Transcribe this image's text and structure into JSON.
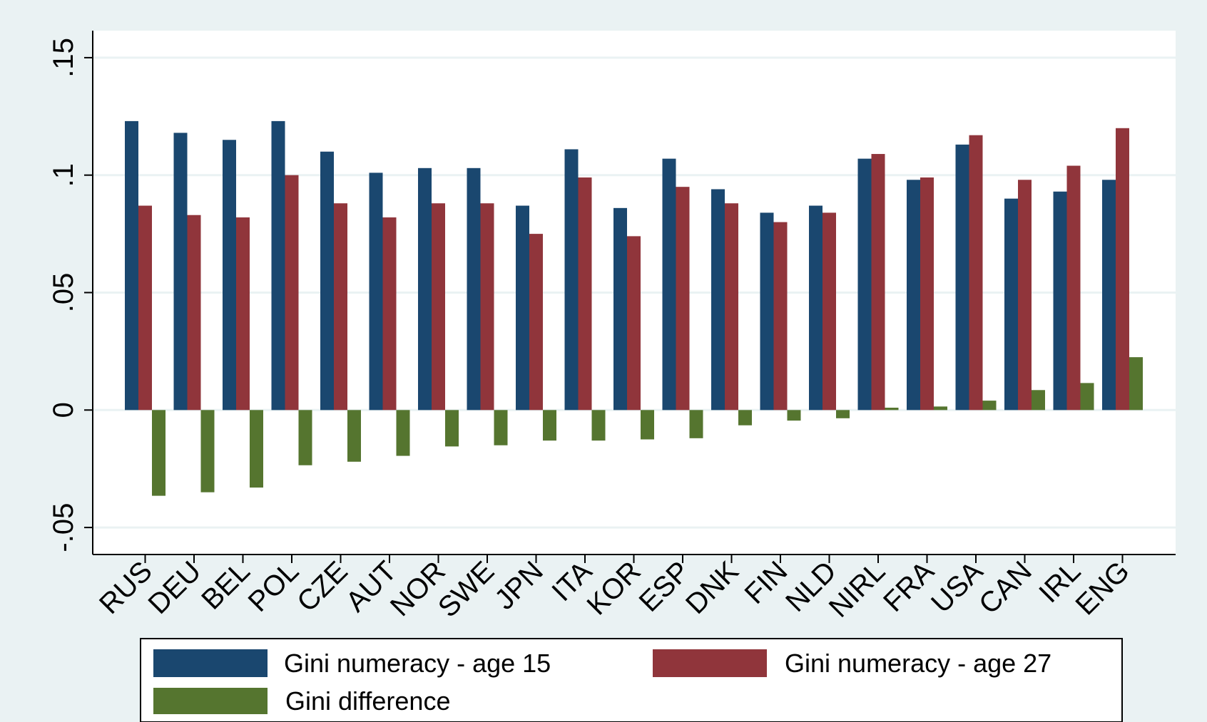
{
  "chart_data": {
    "type": "bar",
    "categories": [
      "RUS",
      "DEU",
      "BEL",
      "POL",
      "CZE",
      "AUT",
      "NOR",
      "SWE",
      "JPN",
      "ITA",
      "KOR",
      "ESP",
      "DNK",
      "FIN",
      "NLD",
      "NIRL",
      "FRA",
      "USA",
      "CAN",
      "IRL",
      "ENG"
    ],
    "series": [
      {
        "name": "Gini numeracy - age 15",
        "color": "#1a476f",
        "values": [
          0.123,
          0.118,
          0.115,
          0.123,
          0.11,
          0.101,
          0.103,
          0.103,
          0.087,
          0.111,
          0.086,
          0.107,
          0.094,
          0.084,
          0.087,
          0.107,
          0.098,
          0.113,
          0.09,
          0.093,
          0.098
        ]
      },
      {
        "name": "Gini numeracy - age 27",
        "color": "#90353b",
        "values": [
          0.087,
          0.083,
          0.082,
          0.1,
          0.088,
          0.082,
          0.088,
          0.088,
          0.075,
          0.099,
          0.074,
          0.095,
          0.088,
          0.08,
          0.084,
          0.109,
          0.099,
          0.117,
          0.098,
          0.104,
          0.12
        ]
      },
      {
        "name": "Gini difference",
        "color": "#55752f",
        "values": [
          -0.0365,
          -0.035,
          -0.033,
          -0.0235,
          -0.022,
          -0.0195,
          -0.0155,
          -0.015,
          -0.013,
          -0.013,
          -0.0125,
          -0.012,
          -0.0065,
          -0.0045,
          -0.0035,
          0.001,
          0.0015,
          0.004,
          0.0085,
          0.0115,
          0.0225
        ]
      }
    ],
    "y_ticks": [
      {
        "value": -0.05,
        "label": "-.05"
      },
      {
        "value": 0,
        "label": "0"
      },
      {
        "value": 0.05,
        "label": ".05"
      },
      {
        "value": 0.1,
        "label": ".1"
      },
      {
        "value": 0.15,
        "label": ".15"
      }
    ],
    "ylim": [
      -0.0615,
      0.1615
    ],
    "grid": true,
    "legend_position": "bottom"
  }
}
